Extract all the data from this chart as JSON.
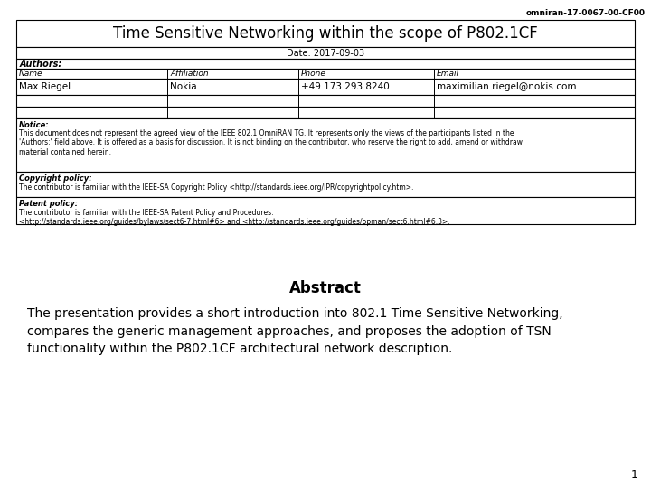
{
  "header_id": "omniran-17-0067-00-CF00",
  "title": "Time Sensitive Networking within the scope of P802.1CF",
  "date_label": "Date: 2017-09-03",
  "authors_label": "Authors:",
  "col_headers": [
    "Name",
    "Affiliation",
    "Phone",
    "Email"
  ],
  "author_rows": [
    [
      "Max Riegel",
      "Nokia",
      "+49 173 293 8240",
      "maximilian.riegel@nokis.com"
    ],
    [
      "",
      "",
      "",
      ""
    ],
    [
      "",
      "",
      "",
      ""
    ]
  ],
  "notice_title": "Notice:",
  "notice_text": "This document does not represent the agreed view of the IEEE 802.1 OmniRAN TG. It represents only the views of the participants listed in the\n'Authors:' field above. It is offered as a basis for discussion. It is not binding on the contributor, who reserve the right to add, amend or withdraw\nmaterial contained herein.",
  "copyright_title": "Copyright policy:",
  "copyright_text": "The contributor is familiar with the IEEE-SA Copyright Policy <http://standards.ieee.org/IPR/copyrightpolicy.htm>.",
  "patent_title": "Patent policy:",
  "patent_text": "The contributor is familiar with the IEEE-SA Patent Policy and Procedures:\n<http://standards.ieee.org/guides/bylaws/sect6-7.html#6> and <http://standards.ieee.org/guides/opman/sect6.html#6.3>.",
  "abstract_heading": "Abstract",
  "abstract_text": "The presentation provides a short introduction into 802.1 Time Sensitive Networking,\ncompares the generic management approaches, and proposes the adoption of TSN\nfunctionality within the P802.1CF architectural network description.",
  "page_number": "1",
  "bg_color": "#ffffff",
  "text_color": "#000000",
  "border_color": "#000000"
}
